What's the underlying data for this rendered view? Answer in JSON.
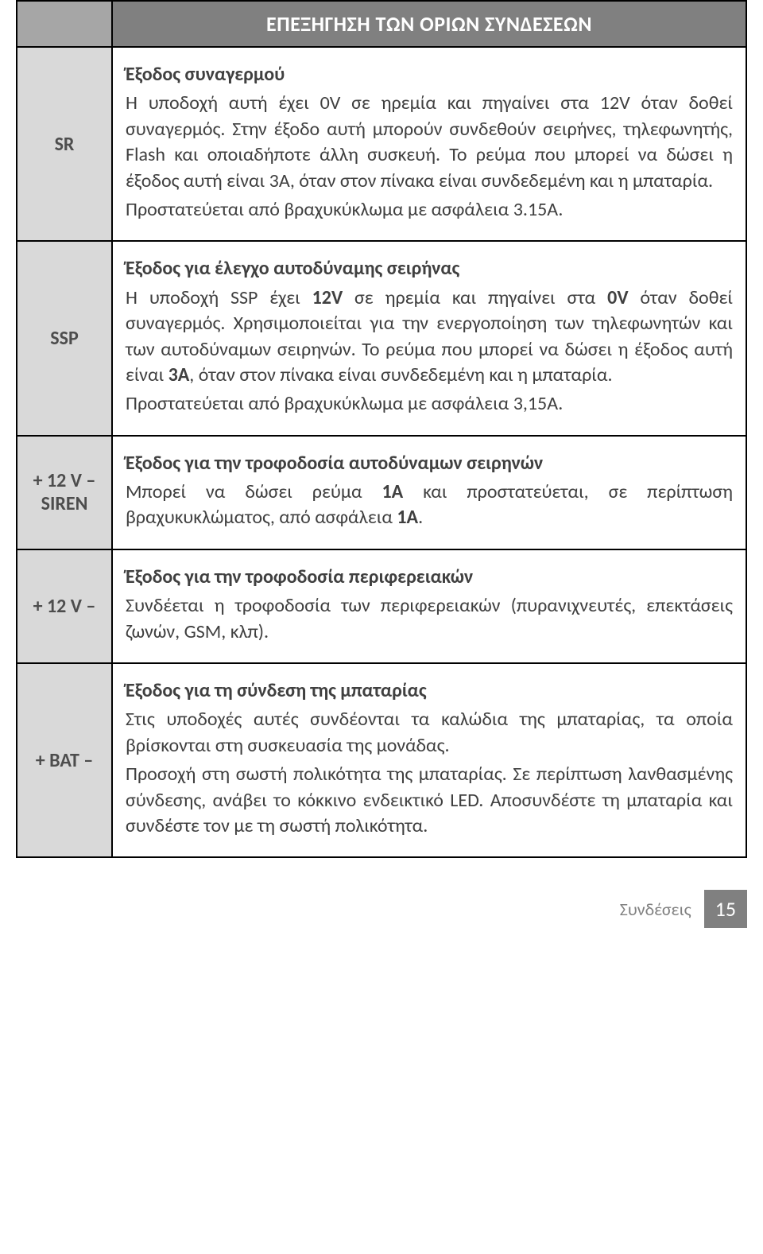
{
  "header": {
    "title": "ΕΠΕΞΗΓΗΣΗ ΤΩΝ ΟΡΙΩΝ ΣΥΝΔΕΣΕΩΝ"
  },
  "rows": [
    {
      "label": "SR",
      "title": "Έξοδος συναγερμού",
      "body_html": "Η υποδοχή αυτή έχει 0V σε ηρεμία και πηγαίνει στα 12V όταν δοθεί συναγερμός. Στην έξοδο αυτή μπορούν συνδεθούν σειρήνες, τηλεφωνητής, Flash και οποιαδήποτε άλλη συσκευή. Το ρεύμα που μπορεί να δώσει η έξοδος αυτή είναι 3Α, όταν στον πίνακα είναι συνδεδεμένη και η μπαταρία.",
      "body2": "Προστατεύεται από βραχυκύκλωμα με ασφάλεια 3.15A."
    },
    {
      "label": "SSP",
      "title": "Έξοδος για έλεγχο αυτοδύναμης σειρήνας",
      "body2": "Προστατεύεται από βραχυκύκλωμα με ασφάλεια 3,15A."
    },
    {
      "label": "+ 12 V – SIREN",
      "title": "Έξοδος για την τροφοδοσία αυτοδύναμων σειρηνών"
    },
    {
      "label": "+ 12 V –",
      "title": "Έξοδος για την τροφοδοσία περιφερειακών",
      "body_html": "Συνδέεται η τροφοδοσία των περιφερειακών (πυρανιχνευτές, επεκτάσεις ζωνών, GSM, κλπ)."
    },
    {
      "label": "+ BAT –",
      "title": "Έξοδος για τη σύνδεση της μπαταρίας",
      "body_html": "Στις υποδοχές αυτές συνδέονται τα καλώδια της μπαταρίας, τα οποία βρίσκονται στη συσκευασία της μονάδας.",
      "body2": "Προσοχή στη σωστή πολικότητα της μπαταρίας. Σε περίπτωση λανθασμένης σύνδεσης, ανάβει το κόκκινο ενδεικτικό LED. Αποσυνδέστε τη μπαταρία και συνδέστε τον με τη σωστή πολικότητα."
    }
  ],
  "footer": {
    "label": "Συνδέσεις",
    "page": "15"
  },
  "colors": {
    "header_bg": "#808080",
    "header_left_bg": "#a6a6a6",
    "label_bg": "#d9d9d9",
    "text": "#404040",
    "border": "#000000",
    "footer_text": "#808080",
    "footer_page_bg": "#808080"
  }
}
